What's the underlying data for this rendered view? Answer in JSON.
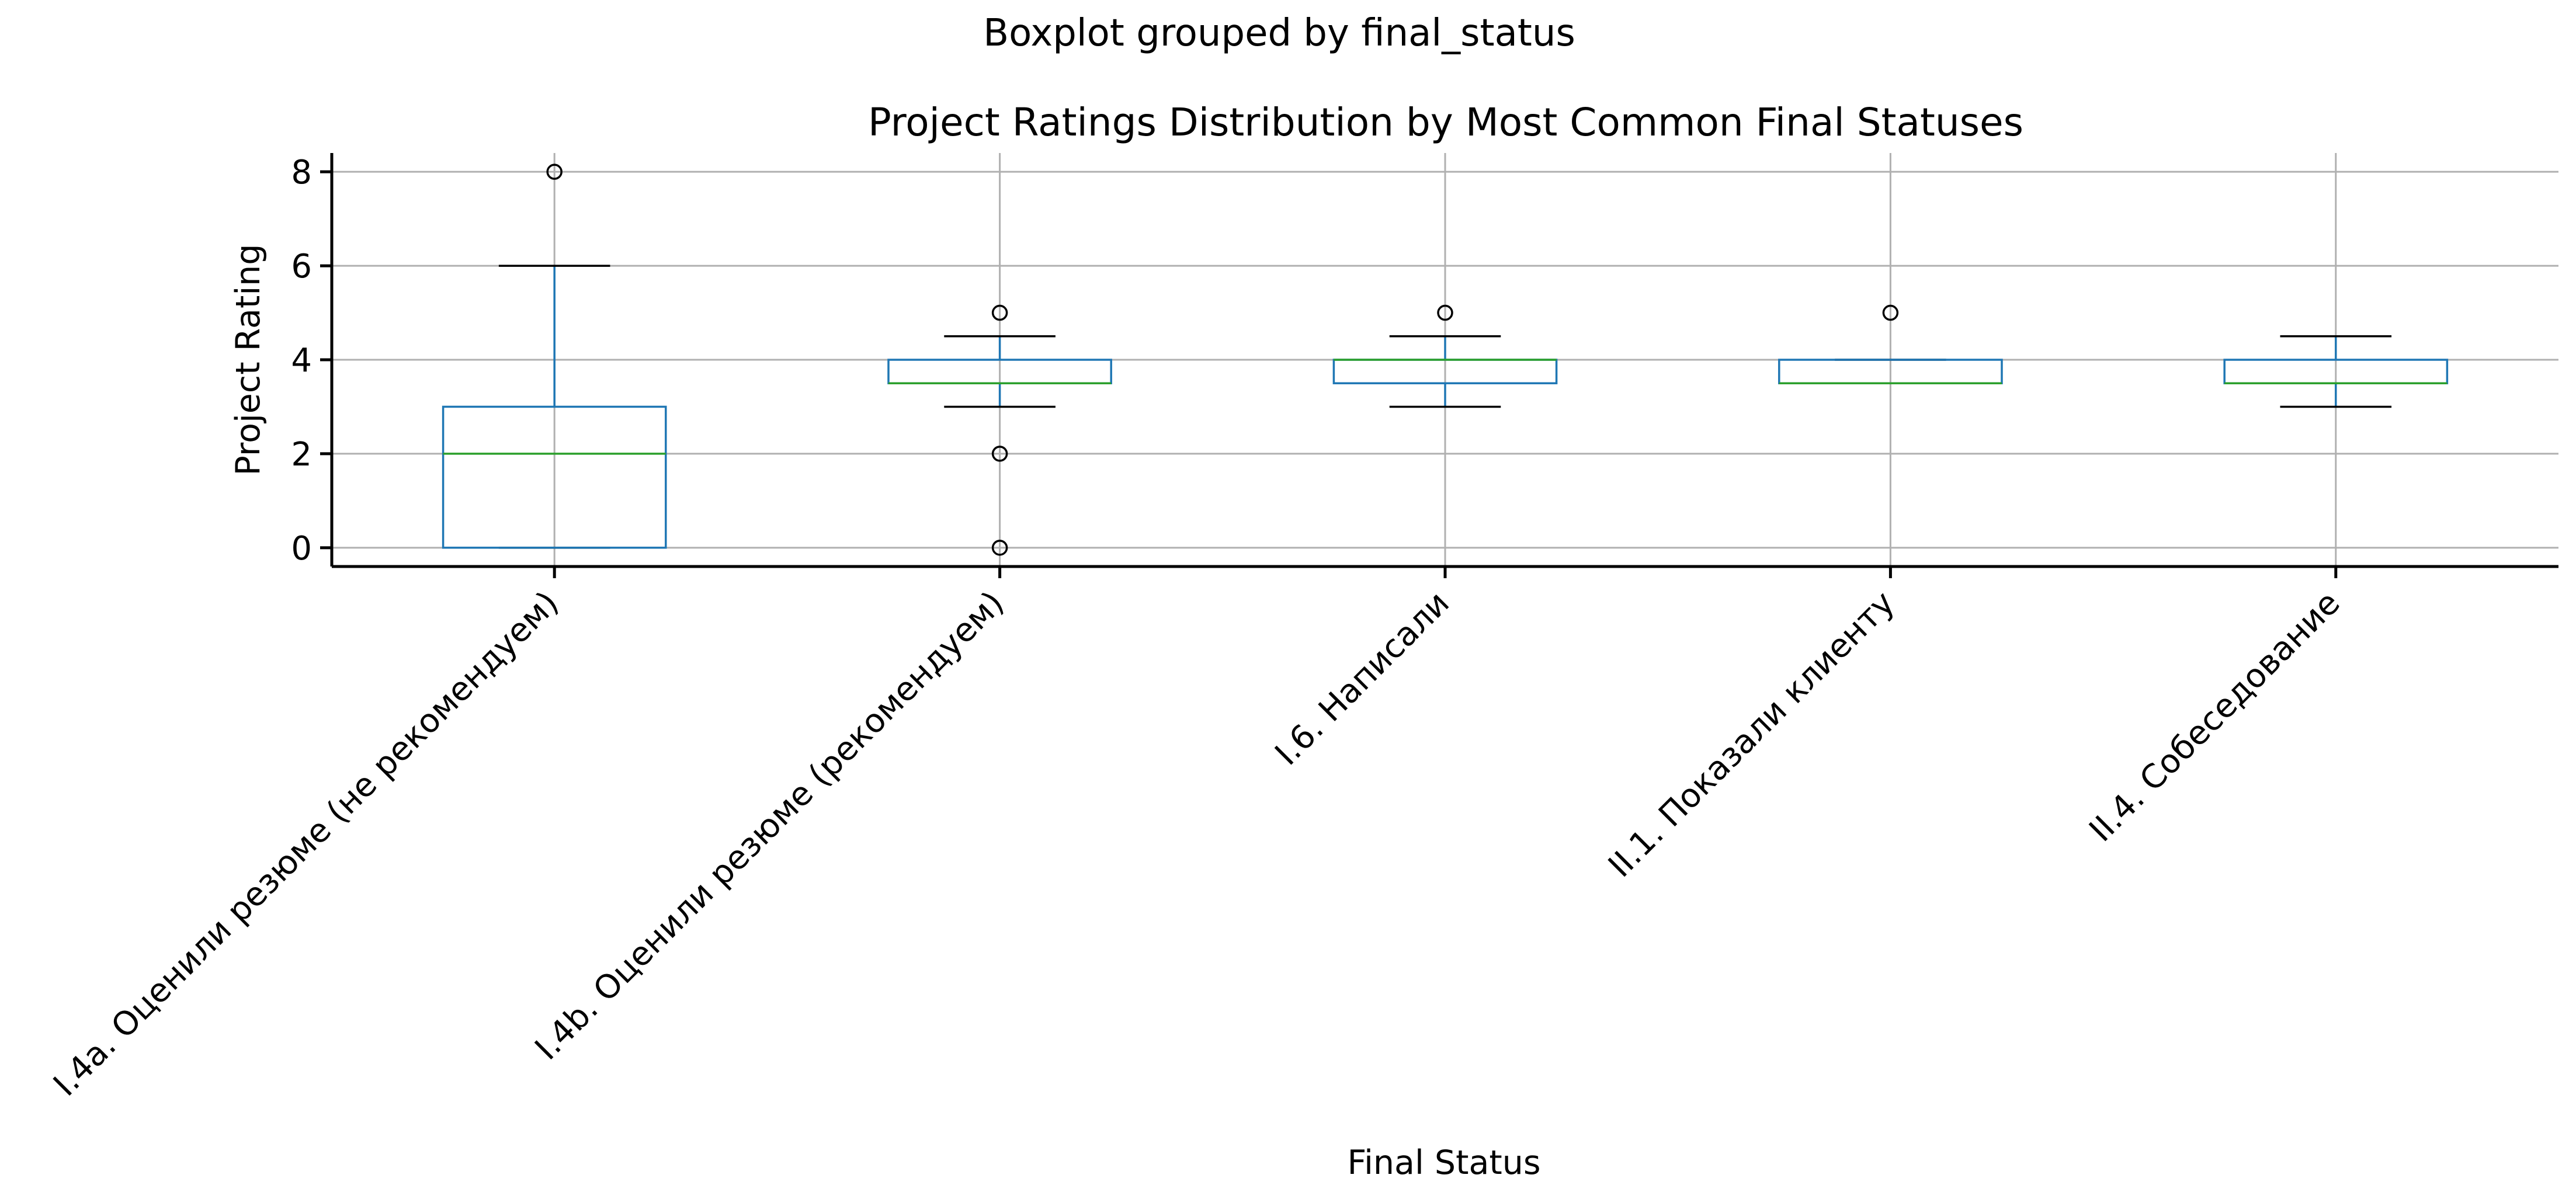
{
  "chart_data": {
    "type": "boxplot",
    "suptitle": "Boxplot grouped by final_status",
    "title": "Project Ratings Distribution by Most Common Final Statuses",
    "xlabel": "Final Status",
    "ylabel": "Project Rating",
    "ylim": [
      -0.4,
      8.4
    ],
    "yticks": [
      0,
      2,
      4,
      6,
      8
    ],
    "grid": true,
    "categories": [
      "I.4a. Оценили резюме (не рекомендуем)",
      "I.4b. Оценили резюме (рекомендуем)",
      "I.6. Написали",
      "II.1. Показали клиенту",
      "II.4. Собеседование"
    ],
    "boxes": [
      {
        "whisker_low": 0,
        "q1": 0,
        "median": 2,
        "q3": 3,
        "whisker_high": 6,
        "outliers": [
          8
        ]
      },
      {
        "whisker_low": 3,
        "q1": 3.5,
        "median": 3.5,
        "q3": 4,
        "whisker_high": 4.5,
        "outliers": [
          5,
          2,
          0
        ]
      },
      {
        "whisker_low": 3,
        "q1": 3.5,
        "median": 4,
        "q3": 4,
        "whisker_high": 4.5,
        "outliers": [
          5
        ]
      },
      {
        "whisker_low": 3.5,
        "q1": 3.5,
        "median": 3.5,
        "q3": 4,
        "whisker_high": 4,
        "outliers": [
          5
        ]
      },
      {
        "whisker_low": 3,
        "q1": 3.5,
        "median": 3.5,
        "q3": 4,
        "whisker_high": 4.5,
        "outliers": []
      }
    ],
    "colors": {
      "box": "#1f77b4",
      "median": "#2ca02c",
      "cap": "#000000",
      "grid": "#b0b0b0",
      "axis": "#000000"
    }
  }
}
